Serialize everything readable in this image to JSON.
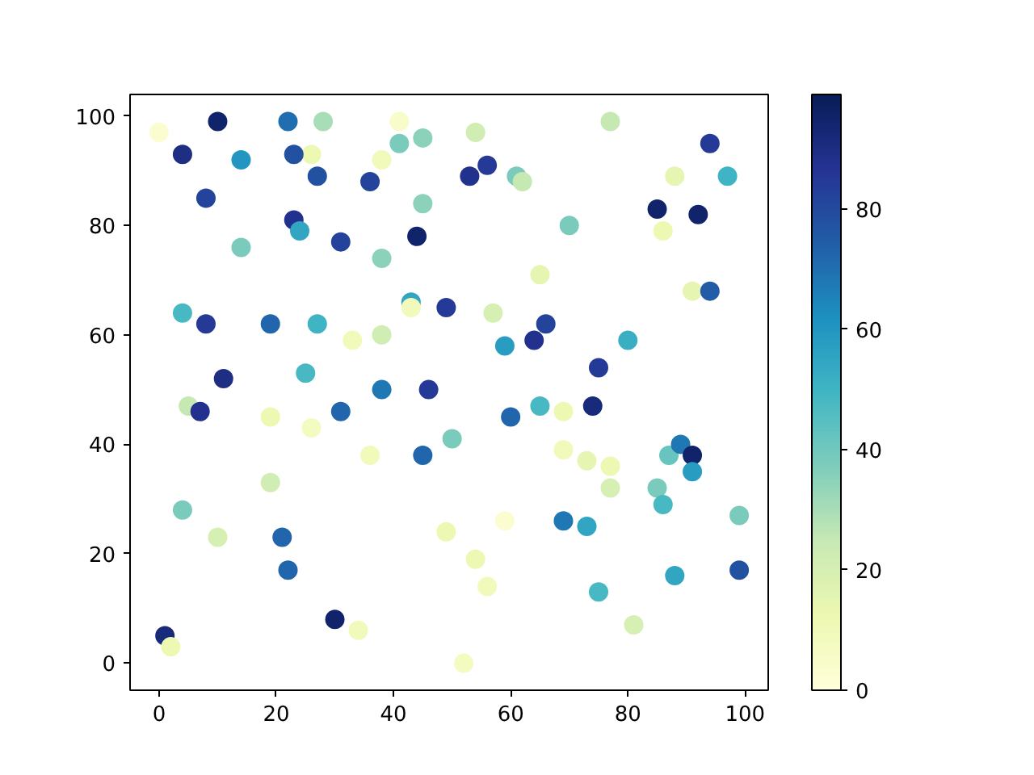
{
  "chart_data": {
    "type": "scatter",
    "x": [
      0,
      10,
      4,
      22,
      28,
      26,
      23,
      14,
      41,
      38,
      41,
      45,
      27,
      36,
      8,
      45,
      23,
      24,
      31,
      44,
      14,
      38,
      4,
      8,
      19,
      27,
      43,
      43,
      49,
      33,
      38,
      11,
      25,
      5,
      7,
      31,
      38,
      46,
      19,
      26,
      36,
      45,
      4,
      19,
      10,
      21,
      22,
      30,
      34,
      1,
      2,
      54,
      77,
      94,
      56,
      53,
      61,
      62,
      88,
      97,
      85,
      92,
      86,
      70,
      65,
      91,
      94,
      57,
      66,
      59,
      64,
      80,
      75,
      60,
      65,
      69,
      74,
      50,
      69,
      73,
      77,
      77,
      85,
      86,
      87,
      89,
      91,
      91,
      99,
      99,
      88,
      69,
      73,
      59,
      49,
      54,
      56,
      75,
      81,
      52
    ],
    "values": [
      97,
      99,
      93,
      99,
      99,
      93,
      93,
      92,
      99,
      92,
      95,
      96,
      89,
      88,
      85,
      84,
      81,
      79,
      77,
      78,
      76,
      74,
      64,
      62,
      62,
      62,
      66,
      65,
      65,
      59,
      60,
      52,
      53,
      47,
      46,
      46,
      50,
      50,
      45,
      43,
      38,
      38,
      28,
      33,
      23,
      23,
      17,
      8,
      6,
      5,
      3,
      97,
      99,
      95,
      91,
      89,
      89,
      88,
      89,
      89,
      83,
      82,
      79,
      80,
      71,
      68,
      68,
      64,
      62,
      58,
      59,
      59,
      54,
      45,
      47,
      46,
      47,
      41,
      39,
      37,
      36,
      32,
      32,
      29,
      38,
      40,
      38,
      35,
      27,
      17,
      16,
      26,
      25,
      26,
      24,
      19,
      14,
      13,
      7,
      0
    ],
    "cvalues": [
      3,
      95,
      90,
      70,
      30,
      12,
      78,
      60,
      5,
      10,
      38,
      35,
      78,
      82,
      82,
      35,
      88,
      55,
      82,
      95,
      38,
      35,
      48,
      85,
      72,
      50,
      55,
      10,
      85,
      10,
      22,
      90,
      48,
      25,
      88,
      72,
      68,
      85,
      12,
      8,
      10,
      72,
      38,
      22,
      20,
      72,
      72,
      95,
      10,
      92,
      12,
      22,
      25,
      85,
      85,
      88,
      38,
      25,
      15,
      50,
      95,
      95,
      12,
      38,
      15,
      15,
      75,
      20,
      82,
      58,
      88,
      52,
      85,
      72,
      48,
      12,
      92,
      38,
      10,
      15,
      12,
      20,
      38,
      48,
      42,
      68,
      95,
      58,
      38,
      78,
      55,
      68,
      55,
      3,
      12,
      12,
      10,
      48,
      20,
      8
    ],
    "clim": [
      0,
      99
    ],
    "cticks": [
      0,
      20,
      40,
      60,
      80
    ],
    "xlim": [
      -4.95,
      103.95
    ],
    "ylim": [
      -4.95,
      103.95
    ],
    "xticks": [
      0,
      20,
      40,
      60,
      80,
      100
    ],
    "yticks": [
      0,
      20,
      40,
      60,
      80,
      100
    ],
    "marker": "circle"
  }
}
